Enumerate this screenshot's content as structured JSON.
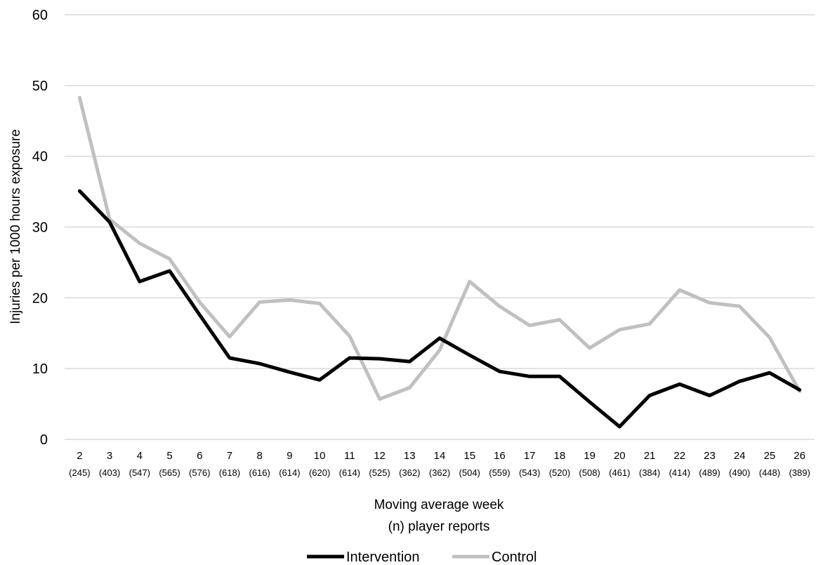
{
  "chart_data": {
    "type": "line",
    "title": "",
    "xlabel": "Moving average week",
    "xlabel_sub": "(n) player reports",
    "ylabel": "Injuries per 1000 hours exposure",
    "ylim": [
      0,
      60
    ],
    "yticks": [
      "0",
      "10",
      "20",
      "30",
      "40",
      "50",
      "60"
    ],
    "grid": true,
    "legend_position": "bottom",
    "categories": [
      "2",
      "3",
      "4",
      "5",
      "6",
      "7",
      "8",
      "9",
      "10",
      "11",
      "12",
      "13",
      "14",
      "15",
      "16",
      "17",
      "18",
      "19",
      "20",
      "21",
      "22",
      "23",
      "24",
      "25",
      "26"
    ],
    "category_counts": [
      "(245)",
      "(403)",
      "(547)",
      "(565)",
      "(576)",
      "(618)",
      "(616)",
      "(614)",
      "(620)",
      "(614)",
      "(525)",
      "(362)",
      "(362)",
      "(504)",
      "(559)",
      "(543)",
      "(520)",
      "(508)",
      "(461)",
      "(384)",
      "(414)",
      "(489)",
      "(490)",
      "(448)",
      "(389)"
    ],
    "series": [
      {
        "name": "Intervention",
        "color": "#000000",
        "values": [
          35.1,
          30.7,
          22.3,
          23.8,
          17.6,
          11.5,
          10.7,
          9.5,
          8.4,
          11.5,
          11.4,
          11.0,
          14.3,
          11.9,
          9.6,
          8.9,
          8.9,
          5.3,
          1.8,
          6.2,
          7.8,
          6.2,
          8.2,
          9.4,
          7.0
        ]
      },
      {
        "name": "Control",
        "color": "#c0c0c0",
        "values": [
          48.3,
          31.1,
          27.7,
          25.5,
          19.4,
          14.5,
          19.4,
          19.7,
          19.2,
          14.6,
          5.7,
          7.3,
          12.6,
          22.3,
          18.8,
          16.1,
          16.9,
          12.9,
          15.5,
          16.3,
          21.1,
          19.3,
          18.8,
          14.4,
          6.8
        ]
      }
    ]
  }
}
